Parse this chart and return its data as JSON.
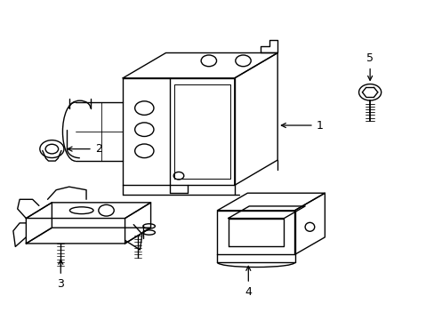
{
  "bg_color": "#ffffff",
  "line_color": "#000000",
  "line_width": 1.0,
  "fig_width": 4.89,
  "fig_height": 3.6,
  "dpi": 100
}
